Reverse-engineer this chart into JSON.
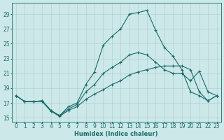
{
  "xlabel": "Humidex (Indice chaleur)",
  "background_color": "#cce8e8",
  "line_color": "#1a6b6b",
  "grid_color": "#aacccc",
  "xlim": [
    -0.5,
    23.5
  ],
  "ylim": [
    14.5,
    30.5
  ],
  "yticks": [
    15,
    17,
    19,
    21,
    23,
    25,
    27,
    29
  ],
  "xticks": [
    0,
    1,
    2,
    3,
    4,
    5,
    6,
    7,
    8,
    9,
    10,
    11,
    12,
    13,
    14,
    15,
    16,
    17,
    18,
    19,
    20,
    21,
    22,
    23
  ],
  "series": [
    {
      "x": [
        0,
        1,
        2,
        3,
        4,
        5,
        6,
        7,
        8,
        9,
        10,
        11,
        12,
        13,
        14,
        15,
        16,
        17,
        18,
        19,
        20,
        21,
        22,
        23
      ],
      "y": [
        18.0,
        17.2,
        17.2,
        17.3,
        16.0,
        15.3,
        16.5,
        17.0,
        19.5,
        21.2,
        24.8,
        26.0,
        27.0,
        29.0,
        29.2,
        29.5,
        26.8,
        24.5,
        23.3,
        21.5,
        18.5,
        18.0,
        17.3,
        18.0
      ]
    },
    {
      "x": [
        0,
        1,
        2,
        3,
        4,
        5,
        6,
        7,
        8,
        9,
        10,
        11,
        12,
        13,
        14,
        15,
        16,
        17,
        18,
        19,
        20,
        21,
        22,
        23
      ],
      "y": [
        18.0,
        17.2,
        17.2,
        17.3,
        16.0,
        15.3,
        16.2,
        16.8,
        18.5,
        19.5,
        21.0,
        21.8,
        22.5,
        23.5,
        23.8,
        23.5,
        22.5,
        21.5,
        21.0,
        21.0,
        20.0,
        21.3,
        18.5,
        18.0
      ]
    },
    {
      "x": [
        0,
        1,
        2,
        3,
        4,
        5,
        6,
        7,
        8,
        9,
        10,
        11,
        12,
        13,
        14,
        15,
        16,
        17,
        18,
        19,
        20,
        21,
        22,
        23
      ],
      "y": [
        18.0,
        17.2,
        17.2,
        17.2,
        15.9,
        15.2,
        16.0,
        16.5,
        17.5,
        18.2,
        18.8,
        19.5,
        20.0,
        20.8,
        21.2,
        21.5,
        21.8,
        22.0,
        22.0,
        22.0,
        21.5,
        18.5,
        17.3,
        18.0
      ]
    }
  ],
  "axis_fontsize": 6,
  "tick_fontsize": 5.5
}
